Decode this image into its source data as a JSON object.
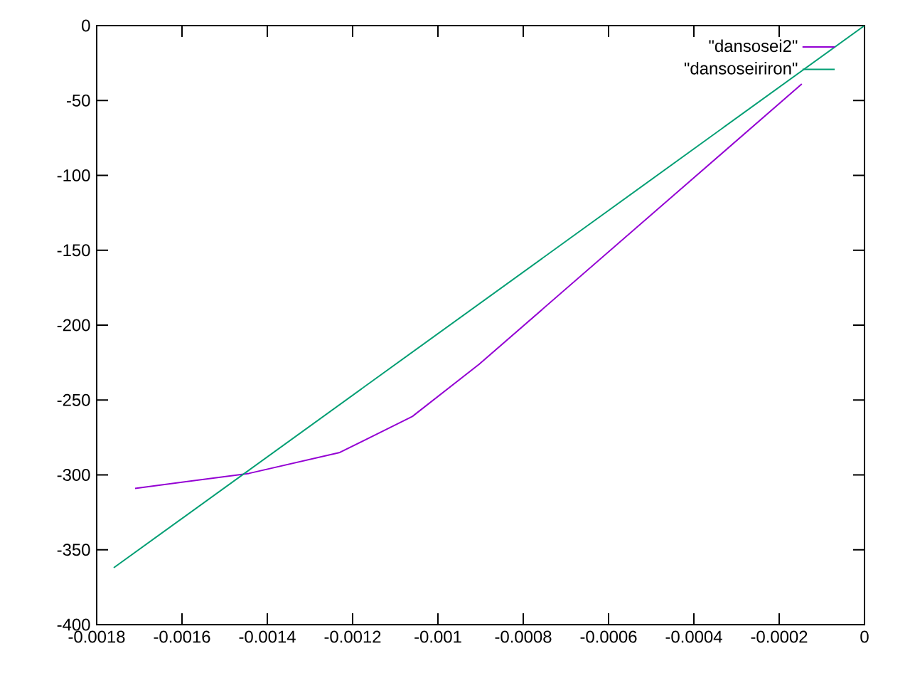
{
  "chart_data": {
    "type": "line",
    "series": [
      {
        "name": "\"dansosei2\"",
        "color": "#9400d3",
        "x": [
          -0.00171,
          -0.001443,
          -0.00123,
          -0.00106,
          -0.000903,
          -0.000147
        ],
        "values": [
          -309,
          -299,
          -285,
          -261,
          -226,
          -39
        ]
      },
      {
        "name": "\"dansoseiriron\"",
        "color": "#009e73",
        "x": [
          -0.00176,
          0
        ],
        "values": [
          -362,
          0
        ]
      }
    ],
    "xlim": [
      -0.0018,
      0
    ],
    "ylim": [
      -400,
      0
    ],
    "xticks": [
      -0.0018,
      -0.0016,
      -0.0014,
      -0.0012,
      -0.001,
      -0.0008,
      -0.0006,
      -0.0004,
      -0.0002,
      0
    ],
    "yticks": [
      -400,
      -350,
      -300,
      -250,
      -200,
      -150,
      -100,
      -50,
      0
    ],
    "legend": "top right",
    "grid": false,
    "marker": "none"
  }
}
